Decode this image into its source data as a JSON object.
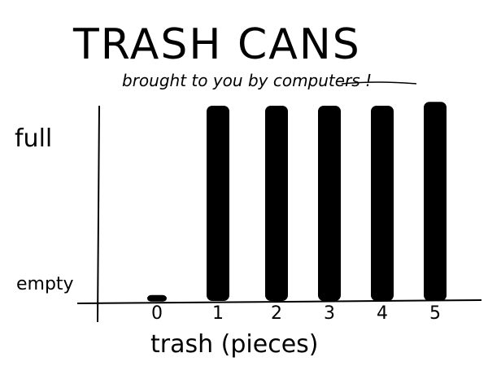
{
  "chart_data": {
    "type": "bar",
    "title": "TRASH CANS",
    "subtitle": "brought to you by computers !",
    "subtitle_underlined_word": "computers",
    "xlabel": "trash (pieces)",
    "ylabel": "",
    "categories": [
      "0",
      "1",
      "2",
      "3",
      "4",
      "5"
    ],
    "values": [
      0.03,
      1.0,
      1.0,
      1.0,
      1.0,
      1.02
    ],
    "y_tick_labels": {
      "empty": 0,
      "full": 1
    },
    "ylim": [
      0,
      1.05
    ],
    "grid": false,
    "style": "hand-drawn",
    "bar_color": "#000000"
  }
}
